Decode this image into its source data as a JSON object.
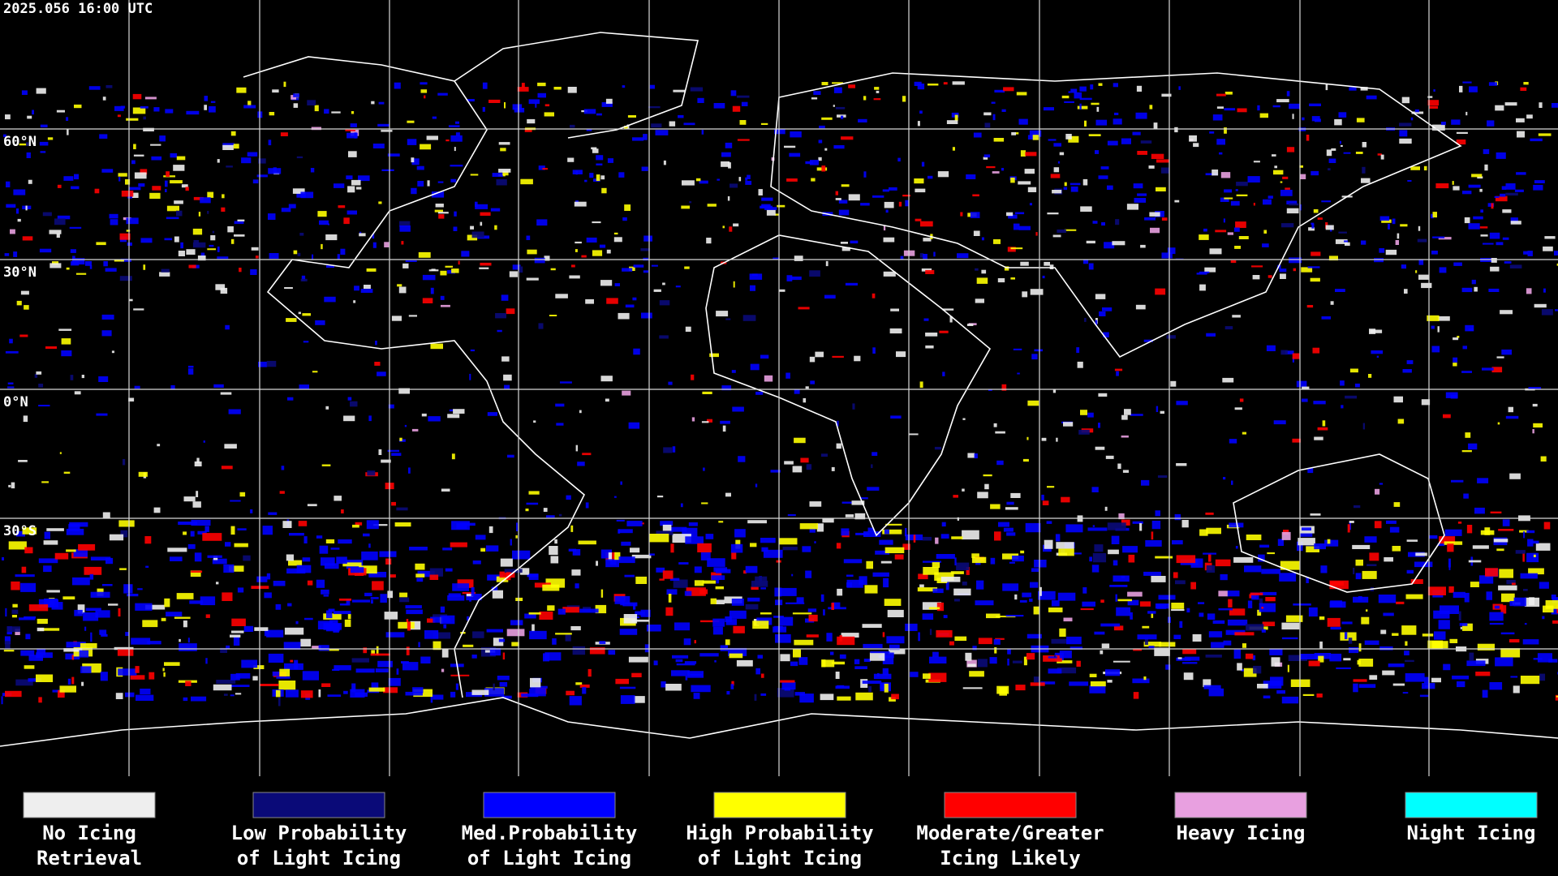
{
  "timestamp": "2025.056 16:00 UTC",
  "map": {
    "latitude_labels": [
      "60°N",
      "30°N",
      "0°N",
      "30°S"
    ]
  },
  "legend": [
    {
      "lines": [
        "No Icing",
        "Retrieval"
      ],
      "color": "#eeeeee"
    },
    {
      "lines": [
        "Low Probability",
        "of Light Icing"
      ],
      "color": "#0a0a78"
    },
    {
      "lines": [
        "Med.Probability",
        "of Light Icing"
      ],
      "color": "#0000ff"
    },
    {
      "lines": [
        "High Probability",
        "of Light Icing"
      ],
      "color": "#ffff00"
    },
    {
      "lines": [
        "Moderate/Greater",
        "Icing Likely"
      ],
      "color": "#ff0000"
    },
    {
      "lines": [
        "Heavy Icing"
      ],
      "color": "#e8a0e0"
    },
    {
      "lines": [
        "Night Icing"
      ],
      "color": "#00ffff"
    }
  ]
}
